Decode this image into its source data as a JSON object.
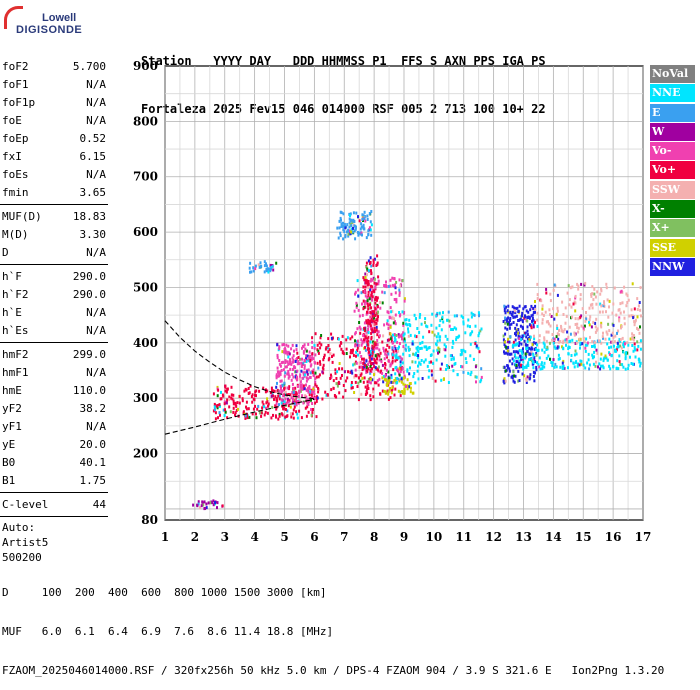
{
  "logo": {
    "line1": "Lowell",
    "line2": "DIGISONDE"
  },
  "header": {
    "line1": "Station   YYYY DAY   DDD HHMMSS P1  FFS S AXN PPS IGA PS",
    "line2": "Fortaleza 2025 Fev15 046 014000 RSF 005 2 713 100 10+ 22"
  },
  "params": {
    "group1": [
      {
        "label": "foF2",
        "value": "5.700"
      },
      {
        "label": "foF1",
        "value": "N/A"
      },
      {
        "label": "foF1p",
        "value": "N/A"
      },
      {
        "label": "foE",
        "value": "N/A"
      },
      {
        "label": "foEp",
        "value": "0.52"
      },
      {
        "label": "fxI",
        "value": "6.15"
      },
      {
        "label": "foEs",
        "value": "N/A"
      },
      {
        "label": "fmin",
        "value": "3.65"
      }
    ],
    "group2": [
      {
        "label": "MUF(D)",
        "value": "18.83"
      },
      {
        "label": "M(D)",
        "value": "3.30"
      },
      {
        "label": "D",
        "value": "N/A"
      }
    ],
    "group3": [
      {
        "label": "h`F",
        "value": "290.0"
      },
      {
        "label": "h`F2",
        "value": "290.0"
      },
      {
        "label": "h`E",
        "value": "N/A"
      },
      {
        "label": "h`Es",
        "value": "N/A"
      }
    ],
    "group4": [
      {
        "label": "hmF2",
        "value": "299.0"
      },
      {
        "label": "hmF1",
        "value": "N/A"
      },
      {
        "label": "hmE",
        "value": "110.0"
      },
      {
        "label": "yF2",
        "value": "38.2"
      },
      {
        "label": "yF1",
        "value": "N/A"
      },
      {
        "label": "yE",
        "value": "20.0"
      },
      {
        "label": "B0",
        "value": "40.1"
      },
      {
        "label": "B1",
        "value": "1.75"
      }
    ],
    "group5": [
      {
        "label": "C-level",
        "value": "44"
      }
    ],
    "auto": [
      "Auto:",
      "Artist5",
      "500200"
    ]
  },
  "legend": [
    {
      "label": "NoVal",
      "color": "#808080"
    },
    {
      "label": "NNE",
      "color": "#00e5ff"
    },
    {
      "label": "E",
      "color": "#3aa0f0"
    },
    {
      "label": "W",
      "color": "#a000a0"
    },
    {
      "label": "Vo-",
      "color": "#f040b0"
    },
    {
      "label": "Vo+",
      "color": "#f00040"
    },
    {
      "label": "SSW",
      "color": "#f4b0b0"
    },
    {
      "label": "X-",
      "color": "#008000"
    },
    {
      "label": "X+",
      "color": "#80c060"
    },
    {
      "label": "SSE",
      "color": "#d0d000"
    },
    {
      "label": "NNW",
      "color": "#2020e0"
    }
  ],
  "footer": {
    "d_line": "D     100  200  400  600  800 1000 1500 3000 [km]",
    "muf_line": "MUF   6.0  6.1  6.4  6.9  7.6  8.6 11.4 18.8 [MHz]",
    "file_line": "FZAOM_2025046014000.RSF / 320fx256h 50 kHz 5.0 km / DPS-4 FZAOM 904 / 3.9 S 321.6 E   Ion2Png 1.3.20"
  },
  "chart_data": {
    "type": "scatter",
    "x_ticks": [
      "1",
      "2",
      "3",
      "4",
      "5",
      "6",
      "7",
      "8",
      "9",
      "10",
      "11",
      "12",
      "13",
      "14",
      "15",
      "16",
      "17"
    ],
    "y_ticks": [
      "80",
      "200",
      "300",
      "400",
      "500",
      "600",
      "700",
      "800",
      "900"
    ],
    "xlim": [
      1,
      17
    ],
    "ylim": [
      80,
      900
    ],
    "grid": true,
    "clusters": [
      {
        "x": [
          2.6,
          6.1
        ],
        "y": [
          265,
          325
        ],
        "dir": "Vo+"
      },
      {
        "x": [
          4.7,
          6.0
        ],
        "y": [
          290,
          400
        ],
        "dir": "Vo-"
      },
      {
        "x": [
          5.8,
          8.9
        ],
        "y": [
          300,
          420
        ],
        "dir": "Vo+"
      },
      {
        "x": [
          7.3,
          9.0
        ],
        "y": [
          330,
          520
        ],
        "dir": "Vo-"
      },
      {
        "x": [
          7.6,
          8.1
        ],
        "y": [
          350,
          560
        ],
        "dir": "Vo+"
      },
      {
        "x": [
          8.3,
          9.3
        ],
        "y": [
          310,
          340
        ],
        "dir": "SSE"
      },
      {
        "x": [
          8.5,
          11.6
        ],
        "y": [
          330,
          460
        ],
        "dir": "NNE"
      },
      {
        "x": [
          12.3,
          13.4
        ],
        "y": [
          330,
          470
        ],
        "dir": "NNW"
      },
      {
        "x": [
          12.6,
          16.9
        ],
        "y": [
          355,
          410
        ],
        "dir": "NNE"
      },
      {
        "x": [
          13.3,
          16.9
        ],
        "y": [
          400,
          510
        ],
        "dir": "SSW"
      },
      {
        "x": [
          3.8,
          4.7
        ],
        "y": [
          530,
          550
        ],
        "dir": "E"
      },
      {
        "x": [
          6.7,
          7.9
        ],
        "y": [
          590,
          640
        ],
        "dir": "E"
      },
      {
        "x": [
          1.9,
          2.9
        ],
        "y": [
          103,
          118
        ],
        "dir": "W"
      }
    ],
    "trace_upper": {
      "x": [
        1.0,
        1.5,
        2.0,
        2.5,
        3.0,
        3.5,
        4.0,
        4.5,
        5.0,
        5.5,
        6.0
      ],
      "y": [
        440,
        410,
        385,
        365,
        347,
        333,
        321,
        312,
        306,
        302,
        299
      ]
    },
    "trace_lower": {
      "x": [
        1.0,
        2.0,
        3.0,
        4.0,
        5.0,
        6.0
      ],
      "y": [
        235,
        248,
        262,
        275,
        287,
        298
      ]
    }
  }
}
